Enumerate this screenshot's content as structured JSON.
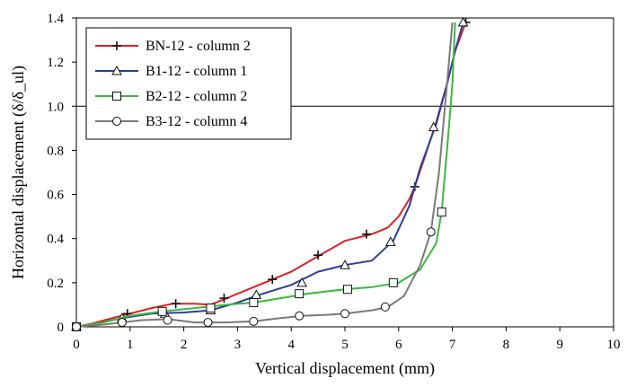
{
  "chart_data": {
    "type": "line",
    "xlabel": "Vertical displacement (mm)",
    "ylabel": "Horizontal displacement (δ/δ_ul)",
    "xlim": [
      0,
      10
    ],
    "ylim": [
      0,
      1.4
    ],
    "x_ticks": [
      "0",
      "1",
      "2",
      "3",
      "4",
      "5",
      "6",
      "7",
      "8",
      "9",
      "10"
    ],
    "y_ticks": [
      "0",
      "0.2",
      "0.4",
      "0.6",
      "0.8",
      "1.0",
      "1.2",
      "1.4"
    ],
    "grid": "horizontal line at 1.0 only",
    "legend_position": "top-left",
    "reference_lines": [
      {
        "axis": "y",
        "value": 1.0,
        "color": "#000000"
      }
    ],
    "series": [
      {
        "name": "BN-12 - column 2",
        "color": "#e02020",
        "marker": "plus",
        "points": [
          [
            0,
            0
          ],
          [
            0.3,
            0.015
          ],
          [
            0.6,
            0.035
          ],
          [
            1.0,
            0.06
          ],
          [
            1.4,
            0.085
          ],
          [
            1.8,
            0.105
          ],
          [
            2.2,
            0.105
          ],
          [
            2.5,
            0.1
          ],
          [
            2.8,
            0.13
          ],
          [
            3.2,
            0.17
          ],
          [
            3.6,
            0.21
          ],
          [
            4.0,
            0.25
          ],
          [
            4.5,
            0.32
          ],
          [
            5.0,
            0.39
          ],
          [
            5.5,
            0.42
          ],
          [
            5.8,
            0.45
          ],
          [
            6.0,
            0.5
          ],
          [
            6.2,
            0.58
          ],
          [
            6.3,
            0.635
          ],
          [
            6.5,
            0.78
          ],
          [
            6.7,
            0.93
          ],
          [
            6.9,
            1.1
          ],
          [
            7.05,
            1.25
          ],
          [
            7.25,
            1.38
          ]
        ],
        "markers": [
          [
            0,
            0
          ],
          [
            0.95,
            0.06
          ],
          [
            1.85,
            0.105
          ],
          [
            2.75,
            0.13
          ],
          [
            3.65,
            0.215
          ],
          [
            4.5,
            0.325
          ],
          [
            5.4,
            0.42
          ],
          [
            6.3,
            0.635
          ],
          [
            7.25,
            1.38
          ]
        ]
      },
      {
        "name": "B1-12 - column 1",
        "color": "#2a3e9a",
        "marker": "triangle",
        "points": [
          [
            0,
            0
          ],
          [
            0.4,
            0.015
          ],
          [
            0.85,
            0.04
          ],
          [
            1.4,
            0.06
          ],
          [
            2.0,
            0.065
          ],
          [
            2.5,
            0.075
          ],
          [
            3.0,
            0.11
          ],
          [
            3.4,
            0.145
          ],
          [
            4.0,
            0.19
          ],
          [
            4.5,
            0.25
          ],
          [
            5.0,
            0.28
          ],
          [
            5.5,
            0.3
          ],
          [
            5.9,
            0.39
          ],
          [
            6.2,
            0.55
          ],
          [
            6.4,
            0.72
          ],
          [
            6.7,
            0.92
          ],
          [
            6.9,
            1.1
          ],
          [
            7.05,
            1.25
          ],
          [
            7.2,
            1.38
          ]
        ],
        "markers": [
          [
            0,
            0
          ],
          [
            0.85,
            0.04
          ],
          [
            1.65,
            0.06
          ],
          [
            2.5,
            0.075
          ],
          [
            3.35,
            0.145
          ],
          [
            4.2,
            0.2
          ],
          [
            5.0,
            0.28
          ],
          [
            5.85,
            0.385
          ],
          [
            6.65,
            0.905
          ],
          [
            7.2,
            1.38
          ]
        ]
      },
      {
        "name": "B2-12 - column 2",
        "color": "#3cb83c",
        "marker": "square",
        "points": [
          [
            0,
            0
          ],
          [
            0.5,
            0.02
          ],
          [
            1.0,
            0.05
          ],
          [
            1.6,
            0.07
          ],
          [
            2.2,
            0.085
          ],
          [
            2.8,
            0.1
          ],
          [
            3.3,
            0.11
          ],
          [
            3.8,
            0.13
          ],
          [
            4.3,
            0.15
          ],
          [
            5.0,
            0.17
          ],
          [
            5.5,
            0.18
          ],
          [
            6.0,
            0.2
          ],
          [
            6.4,
            0.26
          ],
          [
            6.7,
            0.38
          ],
          [
            6.8,
            0.52
          ],
          [
            6.9,
            0.8
          ],
          [
            7.0,
            1.1
          ],
          [
            7.05,
            1.38
          ]
        ],
        "markers": [
          [
            0,
            0
          ],
          [
            1.6,
            0.07
          ],
          [
            2.5,
            0.085
          ],
          [
            3.3,
            0.11
          ],
          [
            4.15,
            0.15
          ],
          [
            5.05,
            0.17
          ],
          [
            5.9,
            0.2
          ],
          [
            6.8,
            0.52
          ]
        ]
      },
      {
        "name": "B3-12 - column 4",
        "color": "#7a7a7a",
        "marker": "circle",
        "points": [
          [
            0,
            0
          ],
          [
            0.5,
            0.01
          ],
          [
            0.85,
            0.02
          ],
          [
            1.2,
            0.03
          ],
          [
            1.7,
            0.035
          ],
          [
            2.2,
            0.02
          ],
          [
            2.8,
            0.02
          ],
          [
            3.3,
            0.025
          ],
          [
            3.8,
            0.04
          ],
          [
            4.2,
            0.05
          ],
          [
            4.7,
            0.055
          ],
          [
            5.0,
            0.06
          ],
          [
            5.5,
            0.075
          ],
          [
            5.8,
            0.09
          ],
          [
            6.1,
            0.14
          ],
          [
            6.4,
            0.28
          ],
          [
            6.6,
            0.43
          ],
          [
            6.75,
            0.7
          ],
          [
            6.9,
            1.1
          ],
          [
            7.0,
            1.38
          ]
        ],
        "markers": [
          [
            0,
            0
          ],
          [
            0.85,
            0.02
          ],
          [
            1.7,
            0.03
          ],
          [
            2.45,
            0.02
          ],
          [
            3.3,
            0.025
          ],
          [
            4.15,
            0.05
          ],
          [
            5.0,
            0.06
          ],
          [
            5.75,
            0.09
          ],
          [
            6.6,
            0.43
          ]
        ]
      }
    ]
  }
}
